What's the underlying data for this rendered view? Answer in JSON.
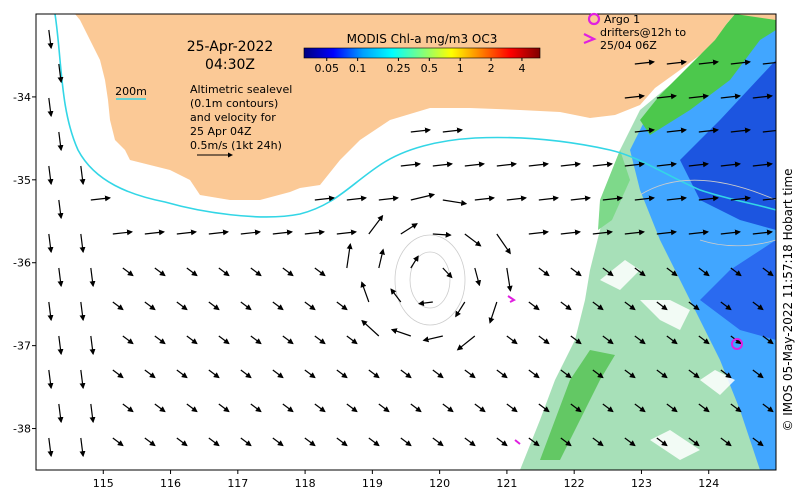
{
  "map": {
    "date_line1": "25-Apr-2022",
    "date_line2": "04:30Z",
    "colorbar_title": "MODIS Chl-a mg/m3 OC3",
    "colorbar_ticks": [
      "0.05",
      "0.1",
      "0.25",
      "0.5",
      "1",
      "2",
      "4"
    ],
    "colorbar_tick_values": [
      0.05,
      0.1,
      0.25,
      0.5,
      1,
      2,
      4
    ],
    "colorbar_range": [
      0.03,
      6
    ],
    "colorbar_colors": [
      "#00007f",
      "#0000ff",
      "#00a0ff",
      "#00ffff",
      "#7fff7f",
      "#ffff00",
      "#ff8000",
      "#ff0000",
      "#7f0000"
    ],
    "depth_legend_label": "200m",
    "depth_line_color": "#33d6e6",
    "land_color": "#fbc996",
    "marker_color": "#e020e0",
    "altimetry_lines": [
      "Altimetric sealevel",
      "(0.1m contours)",
      "and velocity for",
      "25 Apr 04Z",
      "0.5m/s (1kt 24h)"
    ],
    "reference_arrow_speed_mps": 0.5,
    "argo_label": "Argo 1",
    "drifters_lines": [
      "drifters@12h to",
      "25/04 06Z"
    ],
    "credit": "© IMOS 05-May-2022 11:57:18 Hobart time",
    "x_ticks": [
      115,
      116,
      117,
      118,
      119,
      120,
      121,
      122,
      123,
      124
    ],
    "y_ticks": [
      -34,
      -35,
      -36,
      -37,
      -38
    ],
    "lon_range": [
      114.0,
      125.0
    ],
    "lat_range": [
      -38.5,
      -33.0
    ]
  }
}
